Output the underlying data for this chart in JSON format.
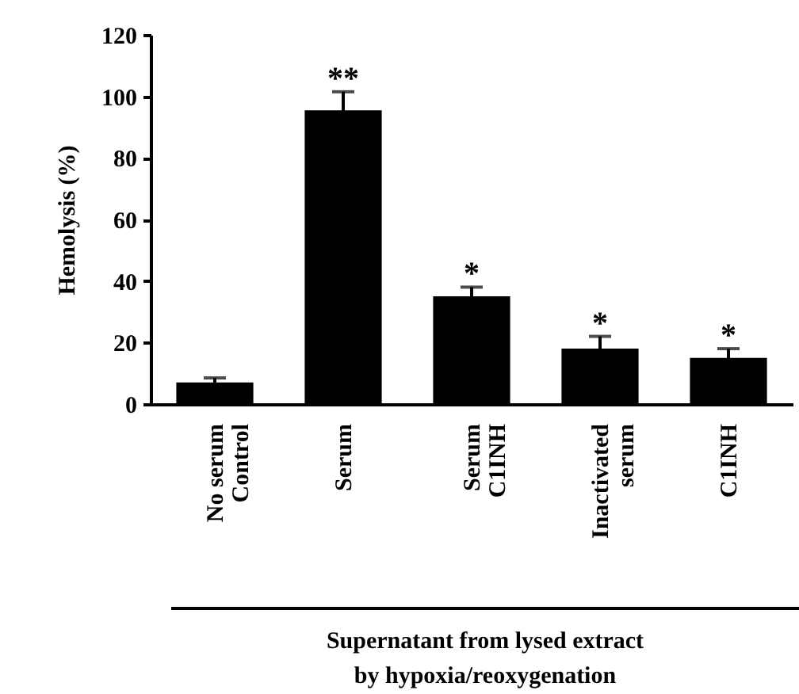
{
  "chart_data": {
    "type": "bar",
    "ylabel": "Hemolysis (%)",
    "xlabel": "Supernatant from lysed extract\nby hypoxia/reoxygenation",
    "categories": [
      "No serum\nControl",
      "Serum",
      "Serum\nC1INH",
      "Inactivated\nserum",
      "C1INH"
    ],
    "values": [
      7,
      95.5,
      35,
      18,
      15
    ],
    "errors": [
      1.5,
      6,
      3,
      4,
      3
    ],
    "color": "#000000",
    "ylim": [
      0,
      120
    ],
    "yticks": [
      0,
      20,
      40,
      60,
      80,
      100,
      120
    ],
    "grid": false,
    "annotations": [
      {
        "text": "**",
        "x": "Serum",
        "y": 101.5
      },
      {
        "text": "*",
        "x": "Serum\nC1INH",
        "y": 38
      },
      {
        "text": "*",
        "x": "Inactivated\nserum",
        "y": 22
      },
      {
        "text": "*",
        "x": "C1INH",
        "y": 18
      }
    ]
  }
}
